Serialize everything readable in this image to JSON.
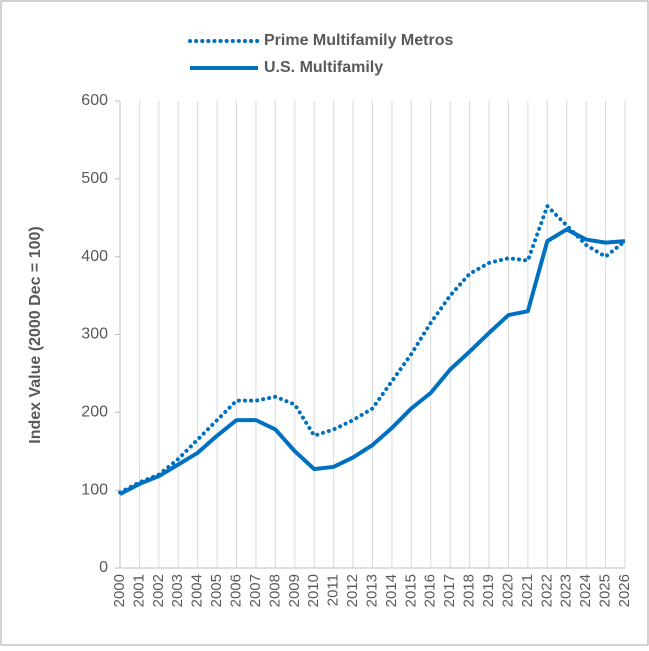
{
  "chart_data": {
    "type": "line",
    "y_label": "Index Value (2000 Dec = 100)",
    "x": [
      2000,
      2001,
      2002,
      2003,
      2004,
      2005,
      2006,
      2007,
      2008,
      2009,
      2010,
      2011,
      2012,
      2013,
      2014,
      2015,
      2016,
      2017,
      2018,
      2019,
      2020,
      2021,
      2022,
      2023,
      2024,
      2025,
      2026
    ],
    "series": [
      {
        "name": "Prime Multifamily Metros",
        "color": "#0070c0",
        "style": "dotted",
        "values": [
          97,
          110,
          120,
          140,
          165,
          190,
          215,
          215,
          220,
          210,
          170,
          178,
          190,
          205,
          240,
          275,
          315,
          350,
          378,
          392,
          398,
          395,
          465,
          440,
          415,
          400,
          420
        ]
      },
      {
        "name": "U.S. Multifamily",
        "color": "#0070c0",
        "style": "solid",
        "values": [
          95,
          108,
          118,
          133,
          148,
          170,
          190,
          190,
          178,
          150,
          127,
          130,
          142,
          158,
          180,
          205,
          225,
          255,
          278,
          302,
          325,
          330,
          420,
          435,
          422,
          418,
          420
        ]
      }
    ],
    "xlim": [
      2000,
      2026
    ],
    "xticks": [
      2000,
      2001,
      2002,
      2003,
      2004,
      2005,
      2006,
      2007,
      2008,
      2009,
      2010,
      2011,
      2012,
      2013,
      2014,
      2015,
      2016,
      2017,
      2018,
      2019,
      2020,
      2021,
      2022,
      2023,
      2024,
      2025,
      2026
    ],
    "ylim": [
      0,
      600
    ],
    "yticks": [
      0,
      100,
      200,
      300,
      400,
      500,
      600
    ],
    "grid": "x"
  }
}
